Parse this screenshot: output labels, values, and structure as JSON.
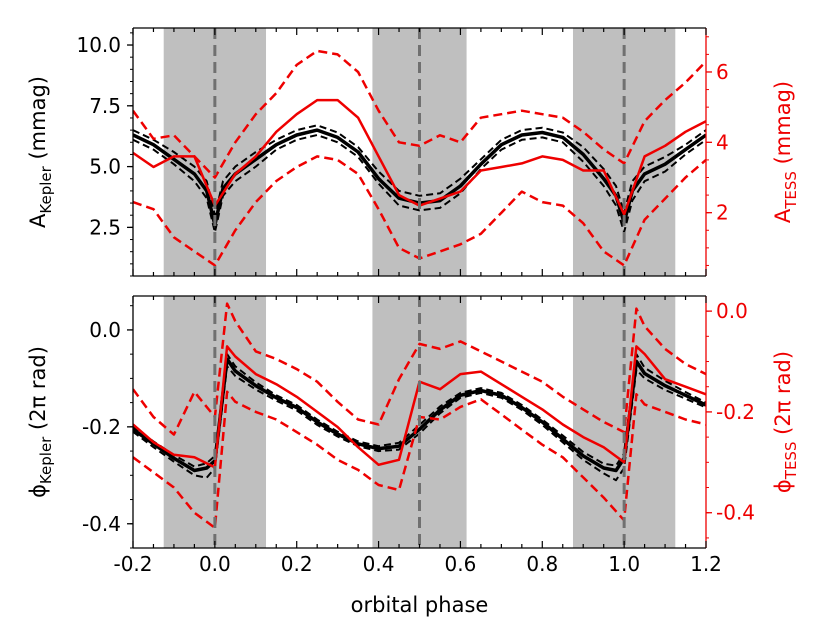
{
  "colors": {
    "kepler": "#000000",
    "tess": "#ee0000",
    "shade": "#bfbfbf",
    "eclipse_line": "#707070"
  },
  "chart_data": [
    {
      "type": "line",
      "panel": "amplitude",
      "xlabel": "",
      "ylabel_left": {
        "main": "A",
        "sub": "Kepler",
        "rest": " (mmag)"
      },
      "ylabel_right": {
        "main": "A",
        "sub": "TESS",
        "rest": " (mmag)"
      },
      "xlim": [
        -0.2,
        1.2
      ],
      "ylim_left": [
        0.5,
        10.7
      ],
      "ylim_right": [
        0.2,
        7.25
      ],
      "xticks": [
        -0.2,
        0.0,
        0.2,
        0.4,
        0.6,
        0.8,
        1.0,
        1.2
      ],
      "yticks_left": [
        "2.5",
        "5.0",
        "7.5",
        "10.0"
      ],
      "yticks_right": [
        "2",
        "4",
        "6"
      ],
      "eclipse_phases": [
        0.0,
        0.5,
        1.0
      ],
      "shaded_ranges": [
        [
          -0.125,
          0.125
        ],
        [
          0.385,
          0.615
        ],
        [
          0.875,
          1.125
        ]
      ],
      "series": [
        {
          "axis": "left",
          "color": "kepler",
          "style": "solid",
          "width": 3.5,
          "x": [
            -0.2,
            -0.15,
            -0.1,
            -0.05,
            -0.02,
            0.0,
            0.02,
            0.05,
            0.1,
            0.15,
            0.2,
            0.25,
            0.3,
            0.35,
            0.4,
            0.45,
            0.5,
            0.55,
            0.6,
            0.65,
            0.7,
            0.75,
            0.8,
            0.85,
            0.9,
            0.95,
            0.98,
            1.0,
            1.02,
            1.05,
            1.1,
            1.15,
            1.2
          ],
          "y": [
            6.3,
            5.9,
            5.3,
            4.7,
            4.0,
            2.6,
            4.1,
            4.7,
            5.3,
            5.9,
            6.3,
            6.5,
            6.2,
            5.6,
            4.5,
            3.7,
            3.5,
            3.6,
            4.2,
            5.1,
            5.9,
            6.3,
            6.4,
            6.2,
            5.5,
            4.5,
            3.8,
            2.7,
            4.0,
            4.7,
            5.1,
            5.7,
            6.3
          ]
        },
        {
          "axis": "left",
          "color": "kepler",
          "style": "dashed",
          "width": 2,
          "x": [
            -0.2,
            -0.15,
            -0.1,
            -0.05,
            -0.02,
            0.0,
            0.02,
            0.05,
            0.1,
            0.15,
            0.2,
            0.25,
            0.3,
            0.35,
            0.4,
            0.45,
            0.5,
            0.55,
            0.6,
            0.65,
            0.7,
            0.75,
            0.8,
            0.85,
            0.9,
            0.95,
            0.98,
            1.0,
            1.02,
            1.05,
            1.1,
            1.15,
            1.2
          ],
          "y": [
            6.5,
            6.1,
            5.6,
            5.0,
            4.4,
            3.0,
            4.4,
            5.0,
            5.6,
            6.1,
            6.5,
            6.7,
            6.4,
            5.8,
            4.8,
            4.0,
            3.8,
            3.9,
            4.5,
            5.3,
            6.1,
            6.5,
            6.6,
            6.4,
            5.8,
            4.9,
            4.2,
            3.1,
            4.4,
            5.0,
            5.4,
            5.9,
            6.5
          ]
        },
        {
          "axis": "left",
          "color": "kepler",
          "style": "dashed",
          "width": 2,
          "x": [
            -0.2,
            -0.15,
            -0.1,
            -0.05,
            -0.02,
            0.0,
            0.02,
            0.05,
            0.1,
            0.15,
            0.2,
            0.25,
            0.3,
            0.35,
            0.4,
            0.45,
            0.5,
            0.55,
            0.6,
            0.65,
            0.7,
            0.75,
            0.8,
            0.85,
            0.9,
            0.95,
            0.98,
            1.0,
            1.02,
            1.05,
            1.1,
            1.15,
            1.2
          ],
          "y": [
            6.1,
            5.7,
            5.1,
            4.4,
            3.7,
            2.3,
            3.8,
            4.4,
            5.0,
            5.7,
            6.1,
            6.3,
            6.0,
            5.4,
            4.3,
            3.4,
            3.2,
            3.3,
            3.9,
            4.9,
            5.7,
            6.1,
            6.2,
            6.0,
            5.2,
            4.2,
            3.4,
            2.3,
            3.6,
            4.4,
            4.8,
            5.5,
            6.1
          ]
        },
        {
          "axis": "right",
          "color": "tess",
          "style": "solid",
          "width": 2.5,
          "x": [
            -0.2,
            -0.15,
            -0.1,
            -0.05,
            0.0,
            0.05,
            0.1,
            0.15,
            0.2,
            0.25,
            0.3,
            0.35,
            0.4,
            0.45,
            0.5,
            0.55,
            0.6,
            0.65,
            0.7,
            0.75,
            0.8,
            0.85,
            0.9,
            0.95,
            1.0,
            1.05,
            1.1,
            1.15,
            1.2
          ],
          "y": [
            3.7,
            3.3,
            3.6,
            3.6,
            2.2,
            3.1,
            3.6,
            4.3,
            4.8,
            5.2,
            5.2,
            4.7,
            3.6,
            2.5,
            2.2,
            2.4,
            2.6,
            3.2,
            3.3,
            3.4,
            3.6,
            3.5,
            3.2,
            3.2,
            1.95,
            3.6,
            3.9,
            4.3,
            4.6
          ]
        },
        {
          "axis": "right",
          "color": "tess",
          "style": "dashed",
          "width": 2.5,
          "x": [
            -0.2,
            -0.15,
            -0.1,
            -0.05,
            0.0,
            0.05,
            0.1,
            0.15,
            0.2,
            0.25,
            0.3,
            0.35,
            0.4,
            0.45,
            0.5,
            0.55,
            0.6,
            0.65,
            0.7,
            0.75,
            0.8,
            0.85,
            0.9,
            0.95,
            1.0,
            1.05,
            1.1,
            1.15,
            1.2
          ],
          "y": [
            4.9,
            4.1,
            4.2,
            3.6,
            3.0,
            4.0,
            4.8,
            5.4,
            6.2,
            6.6,
            6.5,
            6.0,
            4.9,
            4.0,
            3.9,
            4.2,
            4.0,
            4.7,
            4.8,
            4.9,
            4.8,
            4.7,
            4.3,
            3.8,
            3.4,
            4.6,
            5.2,
            5.7,
            6.3
          ]
        },
        {
          "axis": "right",
          "color": "tess",
          "style": "dashed",
          "width": 2.5,
          "x": [
            -0.2,
            -0.15,
            -0.1,
            -0.05,
            0.0,
            0.05,
            0.1,
            0.15,
            0.2,
            0.25,
            0.3,
            0.35,
            0.4,
            0.45,
            0.5,
            0.55,
            0.6,
            0.65,
            0.7,
            0.75,
            0.8,
            0.85,
            0.9,
            0.95,
            1.0,
            1.05,
            1.1,
            1.15,
            1.2
          ],
          "y": [
            2.3,
            2.1,
            1.3,
            0.9,
            0.5,
            1.5,
            2.3,
            2.9,
            3.3,
            3.6,
            3.5,
            3.1,
            2.1,
            1.0,
            0.7,
            0.9,
            1.1,
            1.4,
            2.0,
            2.6,
            2.3,
            2.2,
            1.7,
            0.9,
            0.5,
            1.8,
            2.4,
            3.0,
            3.5
          ]
        }
      ]
    },
    {
      "type": "line",
      "panel": "phase",
      "xlabel": "orbital phase",
      "ylabel_left": {
        "main": "ϕ",
        "sub": "Kepler",
        "rest": " (2π rad)"
      },
      "ylabel_right": {
        "main": "ϕ",
        "sub": "TESS",
        "rest": " (2π rad)"
      },
      "xlim": [
        -0.2,
        1.2
      ],
      "ylim_left": [
        -0.45,
        0.07
      ],
      "ylim_right": [
        -0.47,
        0.03
      ],
      "xticks": [
        -0.2,
        0.0,
        0.2,
        0.4,
        0.6,
        0.8,
        1.0,
        1.2
      ],
      "xtick_labels": [
        "-0.2",
        "0.0",
        "0.2",
        "0.4",
        "0.6",
        "0.8",
        "1.0",
        "1.2"
      ],
      "yticks_left": [
        "-0.4",
        "-0.2",
        "0.0"
      ],
      "yticks_right": [
        "-0.4",
        "-0.2",
        "0.0"
      ],
      "eclipse_phases": [
        0.0,
        0.5,
        1.0
      ],
      "shaded_ranges": [
        [
          -0.125,
          0.125
        ],
        [
          0.385,
          0.615
        ],
        [
          0.875,
          1.125
        ]
      ],
      "series": [
        {
          "axis": "left",
          "color": "kepler",
          "style": "solid",
          "width": 3.5,
          "x": [
            -0.2,
            -0.15,
            -0.1,
            -0.05,
            -0.02,
            0.0,
            0.03,
            0.05,
            0.1,
            0.15,
            0.2,
            0.25,
            0.3,
            0.35,
            0.4,
            0.45,
            0.5,
            0.55,
            0.6,
            0.65,
            0.7,
            0.75,
            0.8,
            0.85,
            0.9,
            0.95,
            0.98,
            1.0,
            1.03,
            1.05,
            1.1,
            1.15,
            1.2
          ],
          "y": [
            -0.205,
            -0.235,
            -0.265,
            -0.29,
            -0.285,
            -0.27,
            -0.06,
            -0.085,
            -0.115,
            -0.14,
            -0.16,
            -0.19,
            -0.215,
            -0.235,
            -0.245,
            -0.24,
            -0.205,
            -0.165,
            -0.135,
            -0.125,
            -0.135,
            -0.16,
            -0.19,
            -0.225,
            -0.26,
            -0.285,
            -0.29,
            -0.265,
            -0.065,
            -0.09,
            -0.115,
            -0.135,
            -0.155
          ]
        },
        {
          "axis": "left",
          "color": "kepler",
          "style": "dashed",
          "width": 2,
          "x": [
            -0.2,
            -0.15,
            -0.1,
            -0.05,
            -0.02,
            0.0,
            0.03,
            0.05,
            0.1,
            0.15,
            0.2,
            0.25,
            0.3,
            0.35,
            0.4,
            0.45,
            0.5,
            0.55,
            0.6,
            0.65,
            0.7,
            0.75,
            0.8,
            0.85,
            0.9,
            0.95,
            0.98,
            1.0,
            1.03,
            1.05,
            1.1,
            1.15,
            1.2
          ],
          "y": [
            -0.2,
            -0.23,
            -0.258,
            -0.282,
            -0.275,
            -0.26,
            -0.05,
            -0.075,
            -0.108,
            -0.135,
            -0.155,
            -0.185,
            -0.21,
            -0.23,
            -0.24,
            -0.233,
            -0.196,
            -0.158,
            -0.13,
            -0.12,
            -0.13,
            -0.155,
            -0.185,
            -0.218,
            -0.252,
            -0.276,
            -0.28,
            -0.255,
            -0.05,
            -0.078,
            -0.105,
            -0.128,
            -0.15
          ]
        },
        {
          "axis": "left",
          "color": "kepler",
          "style": "dashed",
          "width": 2,
          "x": [
            -0.2,
            -0.15,
            -0.1,
            -0.05,
            -0.02,
            0.0,
            0.03,
            0.05,
            0.1,
            0.15,
            0.2,
            0.25,
            0.3,
            0.35,
            0.4,
            0.45,
            0.5,
            0.55,
            0.6,
            0.65,
            0.7,
            0.75,
            0.8,
            0.85,
            0.9,
            0.95,
            0.98,
            1.0,
            1.03,
            1.05,
            1.1,
            1.15,
            1.2
          ],
          "y": [
            -0.21,
            -0.242,
            -0.272,
            -0.3,
            -0.305,
            -0.285,
            -0.075,
            -0.095,
            -0.123,
            -0.146,
            -0.166,
            -0.196,
            -0.22,
            -0.24,
            -0.25,
            -0.247,
            -0.214,
            -0.172,
            -0.14,
            -0.13,
            -0.14,
            -0.165,
            -0.196,
            -0.232,
            -0.268,
            -0.296,
            -0.31,
            -0.285,
            -0.082,
            -0.1,
            -0.124,
            -0.142,
            -0.16
          ]
        },
        {
          "axis": "right",
          "color": "tess",
          "style": "solid",
          "width": 2.5,
          "x": [
            -0.2,
            -0.15,
            -0.1,
            -0.05,
            0.0,
            0.03,
            0.05,
            0.1,
            0.15,
            0.2,
            0.25,
            0.3,
            0.35,
            0.4,
            0.45,
            0.5,
            0.55,
            0.6,
            0.65,
            0.7,
            0.75,
            0.8,
            0.85,
            0.9,
            0.95,
            1.0,
            1.03,
            1.05,
            1.1,
            1.15,
            1.2
          ],
          "y": [
            -0.225,
            -0.26,
            -0.285,
            -0.29,
            -0.31,
            -0.07,
            -0.09,
            -0.125,
            -0.145,
            -0.17,
            -0.2,
            -0.23,
            -0.27,
            -0.305,
            -0.295,
            -0.14,
            -0.155,
            -0.125,
            -0.12,
            -0.145,
            -0.17,
            -0.195,
            -0.225,
            -0.25,
            -0.27,
            -0.3,
            -0.07,
            -0.085,
            -0.135,
            -0.15,
            -0.165
          ]
        },
        {
          "axis": "right",
          "color": "tess",
          "style": "dashed",
          "width": 2.5,
          "x": [
            -0.2,
            -0.15,
            -0.1,
            -0.05,
            0.0,
            0.03,
            0.05,
            0.1,
            0.15,
            0.2,
            0.25,
            0.3,
            0.35,
            0.4,
            0.45,
            0.5,
            0.55,
            0.6,
            0.65,
            0.7,
            0.75,
            0.8,
            0.85,
            0.9,
            0.95,
            1.0,
            1.03,
            1.05,
            1.1,
            1.15,
            1.2
          ],
          "y": [
            -0.155,
            -0.21,
            -0.245,
            -0.16,
            -0.21,
            0.015,
            -0.02,
            -0.08,
            -0.095,
            -0.115,
            -0.14,
            -0.18,
            -0.215,
            -0.225,
            -0.135,
            -0.065,
            -0.075,
            -0.06,
            -0.08,
            -0.1,
            -0.12,
            -0.14,
            -0.17,
            -0.195,
            -0.22,
            -0.24,
            0.005,
            -0.03,
            -0.075,
            -0.105,
            -0.125
          ]
        },
        {
          "axis": "right",
          "color": "tess",
          "style": "dashed",
          "width": 2.5,
          "x": [
            -0.2,
            -0.15,
            -0.1,
            -0.05,
            0.0,
            0.03,
            0.05,
            0.1,
            0.15,
            0.2,
            0.25,
            0.3,
            0.35,
            0.4,
            0.45,
            0.5,
            0.55,
            0.6,
            0.65,
            0.7,
            0.75,
            0.8,
            0.85,
            0.9,
            0.95,
            1.0,
            1.03,
            1.05,
            1.1,
            1.15,
            1.2
          ],
          "y": [
            -0.29,
            -0.32,
            -0.35,
            -0.4,
            -0.43,
            -0.16,
            -0.18,
            -0.2,
            -0.215,
            -0.24,
            -0.265,
            -0.295,
            -0.315,
            -0.345,
            -0.355,
            -0.21,
            -0.215,
            -0.19,
            -0.175,
            -0.205,
            -0.235,
            -0.265,
            -0.29,
            -0.33,
            -0.37,
            -0.415,
            -0.165,
            -0.185,
            -0.2,
            -0.215,
            -0.225
          ]
        }
      ]
    }
  ]
}
